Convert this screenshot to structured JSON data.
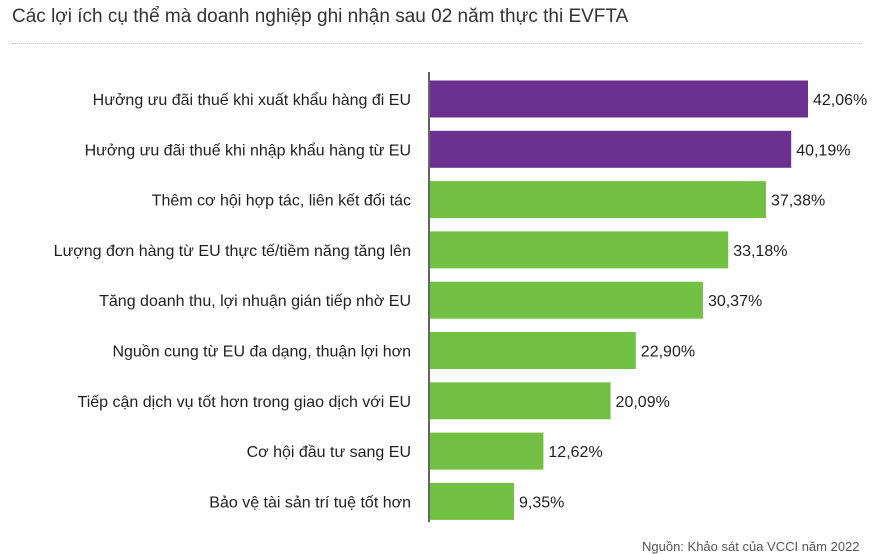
{
  "chart_data": {
    "type": "bar",
    "orientation": "horizontal",
    "title": "Các lợi ích cụ thể mà doanh nghiệp ghi nhận sau 02 năm thực thi EVFTA",
    "categories": [
      "Hưởng ưu đãi thuế khi xuất khẩu hàng đi EU",
      "Hưởng ưu đãi thuế khi nhập khẩu hàng từ EU",
      "Thêm cơ hội hợp tác, liên kết đối tác",
      "Lượng đơn hàng từ EU thực tế/tiềm năng tăng lên",
      "Tăng doanh thu, lợi nhuận gián tiếp nhờ EU",
      "Nguồn cung từ EU đa dạng, thuận lợi hơn",
      "Tiếp cận dịch vụ tốt hơn trong giao dịch với EU",
      "Cơ hội đầu tư sang EU",
      "Bảo vệ tài sản trí tuệ tốt hơn"
    ],
    "values": [
      42.06,
      40.19,
      37.38,
      33.18,
      30.37,
      22.9,
      20.09,
      12.62,
      9.35
    ],
    "value_labels": [
      "42,06%",
      "40,19%",
      "37,38%",
      "33,18%",
      "30,37%",
      "22,90%",
      "20,09%",
      "12,62%",
      "9,35%"
    ],
    "bar_colors": [
      "#6a3190",
      "#6a3190",
      "#72c044",
      "#72c044",
      "#72c044",
      "#72c044",
      "#72c044",
      "#72c044",
      "#72c044"
    ],
    "xlim": [
      0,
      42.06
    ],
    "grid": false,
    "legend": "none",
    "source": "Nguồn: Khảo sát của VCCI năm 2022"
  }
}
